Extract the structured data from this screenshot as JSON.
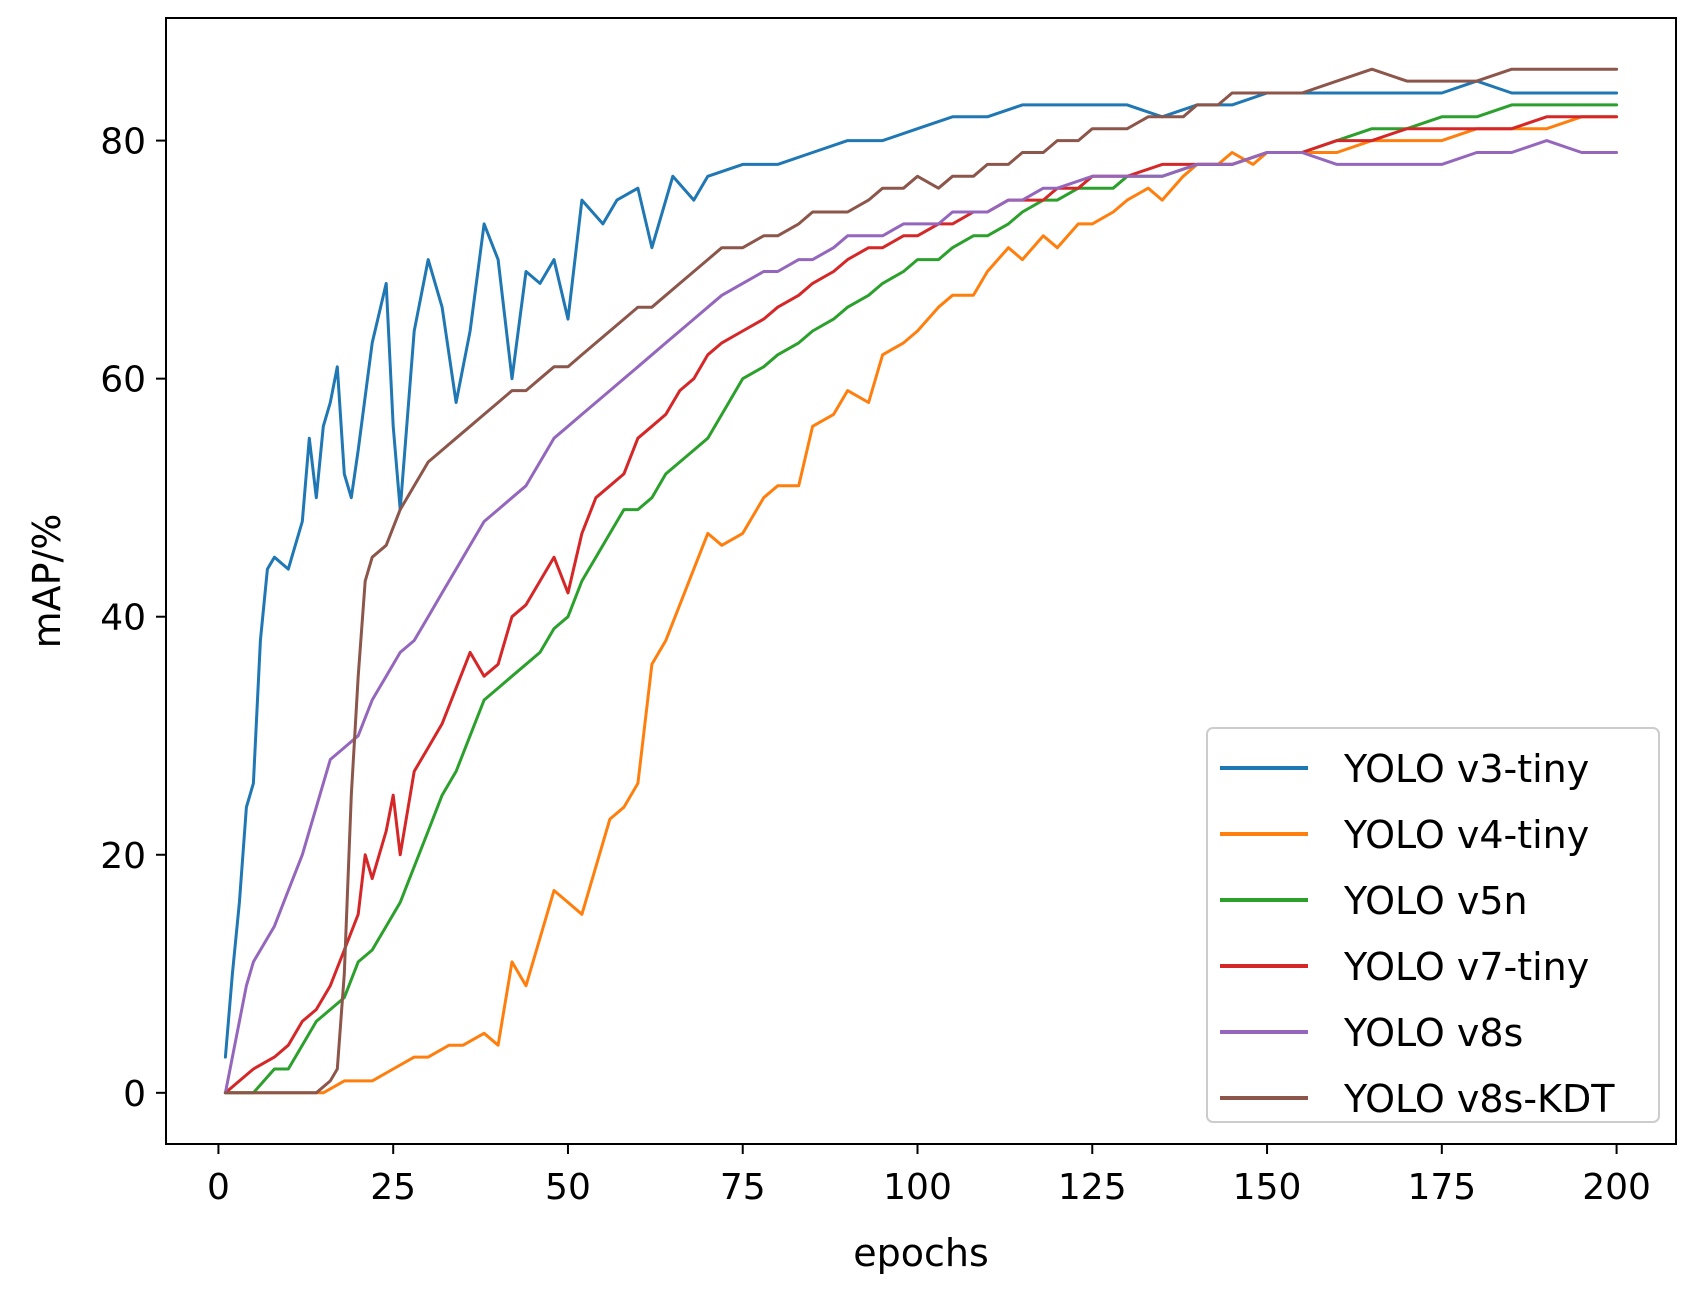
{
  "chart_data": {
    "type": "line",
    "title": "",
    "xlabel": "epochs",
    "ylabel": "mAP/%",
    "xlim": [
      -7.5,
      208.5
    ],
    "ylim": [
      -4.3,
      90.3
    ],
    "xticks": [
      0,
      25,
      50,
      75,
      100,
      125,
      150,
      175,
      200
    ],
    "yticks": [
      0,
      20,
      40,
      60,
      80
    ],
    "grid": false,
    "legend_position": "lower-right",
    "series": [
      {
        "name": "YOLO v3-tiny",
        "color": "#1f77b4",
        "x": [
          1,
          2,
          3,
          4,
          5,
          6,
          7,
          8,
          10,
          12,
          13,
          14,
          15,
          16,
          17,
          18,
          19,
          20,
          22,
          24,
          25,
          26,
          28,
          30,
          32,
          34,
          36,
          38,
          40,
          42,
          44,
          46,
          48,
          50,
          52,
          55,
          57,
          60,
          62,
          65,
          68,
          70,
          75,
          80,
          85,
          90,
          95,
          100,
          105,
          110,
          115,
          120,
          125,
          130,
          135,
          140,
          145,
          150,
          155,
          160,
          165,
          170,
          175,
          180,
          185,
          190,
          195,
          200
        ],
        "y": [
          3,
          10,
          16,
          24,
          26,
          38,
          44,
          45,
          44,
          48,
          55,
          50,
          56,
          58,
          61,
          52,
          50,
          54,
          63,
          68,
          56,
          49,
          64,
          70,
          66,
          58,
          64,
          73,
          70,
          60,
          69,
          68,
          70,
          65,
          75,
          73,
          75,
          76,
          71,
          77,
          75,
          77,
          78,
          78,
          79,
          80,
          80,
          81,
          82,
          82,
          83,
          83,
          83,
          83,
          82,
          83,
          83,
          84,
          84,
          84,
          84,
          84,
          84,
          85,
          84,
          84,
          84,
          84
        ]
      },
      {
        "name": "YOLO v4-tiny",
        "color": "#ff7f0e",
        "x": [
          1,
          5,
          10,
          15,
          18,
          20,
          22,
          25,
          28,
          30,
          33,
          35,
          38,
          40,
          42,
          44,
          46,
          48,
          50,
          52,
          54,
          56,
          58,
          60,
          62,
          64,
          66,
          68,
          70,
          72,
          75,
          78,
          80,
          83,
          85,
          88,
          90,
          93,
          95,
          98,
          100,
          103,
          105,
          108,
          110,
          113,
          115,
          118,
          120,
          123,
          125,
          128,
          130,
          133,
          135,
          138,
          140,
          143,
          145,
          148,
          150,
          155,
          160,
          165,
          170,
          175,
          180,
          185,
          190,
          195,
          200
        ],
        "y": [
          0,
          0,
          0,
          0,
          1,
          1,
          1,
          2,
          3,
          3,
          4,
          4,
          5,
          4,
          11,
          9,
          13,
          17,
          16,
          15,
          19,
          23,
          24,
          26,
          36,
          38,
          41,
          44,
          47,
          46,
          47,
          50,
          51,
          51,
          56,
          57,
          59,
          58,
          62,
          63,
          64,
          66,
          67,
          67,
          69,
          71,
          70,
          72,
          71,
          73,
          73,
          74,
          75,
          76,
          75,
          77,
          78,
          78,
          79,
          78,
          79,
          79,
          79,
          80,
          80,
          80,
          81,
          81,
          81,
          82,
          82
        ]
      },
      {
        "name": "YOLO v5n",
        "color": "#2ca02c",
        "x": [
          1,
          5,
          8,
          10,
          12,
          14,
          16,
          18,
          20,
          22,
          24,
          26,
          28,
          30,
          32,
          34,
          36,
          38,
          40,
          42,
          44,
          46,
          48,
          50,
          52,
          54,
          56,
          58,
          60,
          62,
          64,
          66,
          68,
          70,
          73,
          75,
          78,
          80,
          83,
          85,
          88,
          90,
          93,
          95,
          98,
          100,
          103,
          105,
          108,
          110,
          113,
          115,
          118,
          120,
          123,
          125,
          128,
          130,
          133,
          135,
          140,
          145,
          150,
          155,
          160,
          165,
          170,
          175,
          180,
          185,
          190,
          195,
          200
        ],
        "y": [
          0,
          0,
          2,
          2,
          4,
          6,
          7,
          8,
          11,
          12,
          14,
          16,
          19,
          22,
          25,
          27,
          30,
          33,
          34,
          35,
          36,
          37,
          39,
          40,
          43,
          45,
          47,
          49,
          49,
          50,
          52,
          53,
          54,
          55,
          58,
          60,
          61,
          62,
          63,
          64,
          65,
          66,
          67,
          68,
          69,
          70,
          70,
          71,
          72,
          72,
          73,
          74,
          75,
          75,
          76,
          76,
          76,
          77,
          77,
          77,
          78,
          78,
          79,
          79,
          80,
          81,
          81,
          82,
          82,
          83,
          83,
          83,
          83
        ]
      },
      {
        "name": "YOLO v7-tiny",
        "color": "#d62728",
        "x": [
          1,
          3,
          5,
          8,
          10,
          12,
          14,
          16,
          18,
          20,
          21,
          22,
          24,
          25,
          26,
          28,
          30,
          32,
          34,
          36,
          38,
          40,
          42,
          44,
          46,
          48,
          50,
          52,
          54,
          56,
          58,
          60,
          62,
          64,
          66,
          68,
          70,
          72,
          75,
          78,
          80,
          83,
          85,
          88,
          90,
          93,
          95,
          98,
          100,
          103,
          105,
          108,
          110,
          113,
          115,
          118,
          120,
          123,
          125,
          128,
          130,
          135,
          140,
          145,
          150,
          155,
          160,
          165,
          170,
          175,
          180,
          185,
          190,
          195,
          200
        ],
        "y": [
          0,
          1,
          2,
          3,
          4,
          6,
          7,
          9,
          12,
          15,
          20,
          18,
          22,
          25,
          20,
          27,
          29,
          31,
          34,
          37,
          35,
          36,
          40,
          41,
          43,
          45,
          42,
          47,
          50,
          51,
          52,
          55,
          56,
          57,
          59,
          60,
          62,
          63,
          64,
          65,
          66,
          67,
          68,
          69,
          70,
          71,
          71,
          72,
          72,
          73,
          73,
          74,
          74,
          75,
          75,
          75,
          76,
          76,
          77,
          77,
          77,
          78,
          78,
          78,
          79,
          79,
          80,
          80,
          81,
          81,
          81,
          81,
          82,
          82,
          82
        ]
      },
      {
        "name": "YOLO v8s",
        "color": "#9467bd",
        "x": [
          1,
          2,
          3,
          4,
          5,
          6,
          8,
          10,
          12,
          14,
          16,
          18,
          20,
          22,
          24,
          26,
          28,
          30,
          32,
          34,
          36,
          38,
          40,
          42,
          44,
          46,
          48,
          50,
          52,
          54,
          56,
          58,
          60,
          62,
          64,
          66,
          68,
          70,
          72,
          75,
          78,
          80,
          83,
          85,
          88,
          90,
          93,
          95,
          98,
          100,
          103,
          105,
          108,
          110,
          113,
          115,
          118,
          120,
          125,
          130,
          135,
          140,
          145,
          150,
          155,
          160,
          165,
          170,
          175,
          180,
          185,
          190,
          195,
          200
        ],
        "y": [
          0,
          3,
          6,
          9,
          11,
          12,
          14,
          17,
          20,
          24,
          28,
          29,
          30,
          33,
          35,
          37,
          38,
          40,
          42,
          44,
          46,
          48,
          49,
          50,
          51,
          53,
          55,
          56,
          57,
          58,
          59,
          60,
          61,
          62,
          63,
          64,
          65,
          66,
          67,
          68,
          69,
          69,
          70,
          70,
          71,
          72,
          72,
          72,
          73,
          73,
          73,
          74,
          74,
          74,
          75,
          75,
          76,
          76,
          77,
          77,
          77,
          78,
          78,
          79,
          79,
          78,
          78,
          78,
          78,
          79,
          79,
          80,
          79,
          79
        ]
      },
      {
        "name": "YOLO v8s-KDT",
        "color": "#8c564b",
        "x": [
          1,
          5,
          10,
          14,
          16,
          17,
          18,
          19,
          20,
          21,
          22,
          24,
          26,
          28,
          30,
          32,
          34,
          36,
          38,
          40,
          42,
          44,
          46,
          48,
          50,
          52,
          54,
          56,
          58,
          60,
          62,
          64,
          66,
          68,
          70,
          72,
          75,
          78,
          80,
          83,
          85,
          88,
          90,
          93,
          95,
          98,
          100,
          103,
          105,
          108,
          110,
          113,
          115,
          118,
          120,
          123,
          125,
          128,
          130,
          133,
          135,
          138,
          140,
          143,
          145,
          150,
          155,
          160,
          165,
          170,
          175,
          180,
          185,
          190,
          195,
          200
        ],
        "y": [
          0,
          0,
          0,
          0,
          1,
          2,
          10,
          25,
          35,
          43,
          45,
          46,
          49,
          51,
          53,
          54,
          55,
          56,
          57,
          58,
          59,
          59,
          60,
          61,
          61,
          62,
          63,
          64,
          65,
          66,
          66,
          67,
          68,
          69,
          70,
          71,
          71,
          72,
          72,
          73,
          74,
          74,
          74,
          75,
          76,
          76,
          77,
          76,
          77,
          77,
          78,
          78,
          79,
          79,
          80,
          80,
          81,
          81,
          81,
          82,
          82,
          82,
          83,
          83,
          84,
          84,
          84,
          85,
          86,
          85,
          85,
          85,
          86,
          86,
          86,
          86
        ]
      }
    ]
  }
}
